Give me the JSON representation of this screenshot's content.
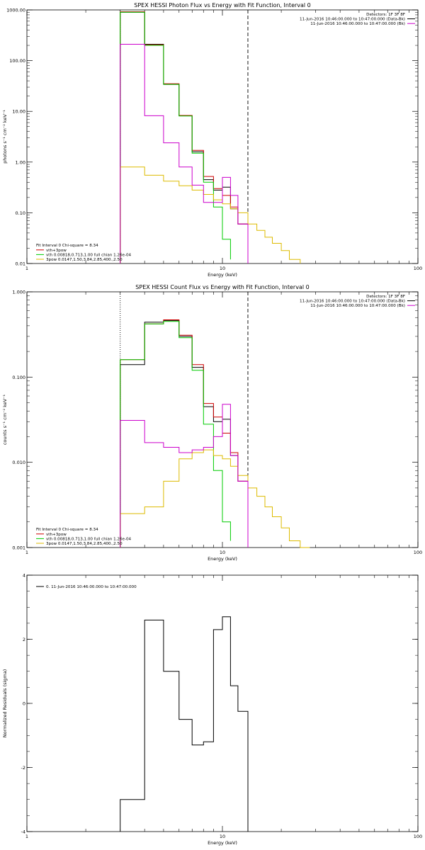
{
  "chart_data": [
    {
      "type": "line",
      "title": "SPEX HESSI Photon Flux vs Energy with Fit Function, Interval 0",
      "xlabel": "Energy (keV)",
      "ylabel": "photons s⁻¹ cm⁻² keV⁻¹",
      "xlim": [
        1,
        100
      ],
      "ylim": [
        0.01,
        1000
      ],
      "log_x": true,
      "log_y": true,
      "x_ticks": [
        {
          "v": 1,
          "t": "1"
        },
        {
          "v": 10,
          "t": "10"
        },
        {
          "v": 100,
          "t": "100"
        }
      ],
      "y_ticks": [
        {
          "v": 0.01,
          "t": "0.01"
        },
        {
          "v": 0.1,
          "t": "0.10"
        },
        {
          "v": 1,
          "t": "1.00"
        },
        {
          "v": 10,
          "t": "10.00"
        },
        {
          "v": 100,
          "t": "100.00"
        },
        {
          "v": 1000,
          "t": "1000.00"
        }
      ],
      "vlines": [
        {
          "x": 3.0,
          "style": "dotted",
          "color": "#000000"
        },
        {
          "x": 13.5,
          "style": "dashed",
          "color": "#000000"
        }
      ],
      "legend_right": [
        {
          "text": "Detectors: 1F 3F 8F",
          "line": false,
          "color": "#000000"
        },
        {
          "text": "11-Jun-2016 10:46:00.000 to 10:47:00.000 (Data-Bk)",
          "line": true,
          "color": "#000000"
        },
        {
          "text": "11-Jun-2016 10:46:00.000 to 10:47:00.000 (Bk)",
          "line": true,
          "color": "#cc00cc"
        }
      ],
      "legend_left": [
        {
          "text": "Fit Interval 0   Chi-square = 8.34",
          "line": false,
          "color": "#000000"
        },
        {
          "text": "vth+3pow",
          "line": true,
          "color": "#cc0000"
        },
        {
          "text": "vth 0.00818,0.713,1.00  full chian 1.26e-04",
          "line": true,
          "color": "#00cc00"
        },
        {
          "text": "3pow 0.0147,1.50,3.84,2.85,400.,2.50",
          "line": true,
          "color": "#ddbb00"
        }
      ],
      "series": [
        {
          "color": "#000000",
          "edges": [
            3.0,
            4.0,
            5.0,
            6.0,
            7.0,
            8.0,
            9.0,
            10.0,
            11.0,
            12.0,
            13.5
          ],
          "values": [
            900,
            210,
            34,
            8.2,
            1.6,
            0.45,
            0.28,
            0.32,
            0.12,
            0.06
          ]
        },
        {
          "color": "#cc0000",
          "edges": [
            3.0,
            4.0,
            5.0,
            6.0,
            7.0,
            8.0,
            9.0,
            10.0,
            11.0,
            12.0,
            13.5
          ],
          "values": [
            920,
            205,
            35,
            8.3,
            1.7,
            0.52,
            0.3,
            0.22,
            0.13,
            0.06
          ]
        },
        {
          "color": "#00cc00",
          "edges": [
            3.0,
            4.0,
            5.0,
            6.0,
            7.0,
            8.0,
            9.0,
            10.0,
            11.0
          ],
          "values": [
            900,
            200,
            34,
            8.1,
            1.5,
            0.4,
            0.13,
            0.03,
            0.012
          ]
        },
        {
          "color": "#ddbb00",
          "edges": [
            3.0,
            4.0,
            5.0,
            6.0,
            7.0,
            8.0,
            9.0,
            10.0,
            11.0,
            12.0,
            13.5,
            15.0,
            16.5,
            18.0,
            20.0,
            22.0,
            25.0
          ],
          "values": [
            0.8,
            0.55,
            0.42,
            0.34,
            0.28,
            0.23,
            0.18,
            0.15,
            0.12,
            0.1,
            0.06,
            0.045,
            0.033,
            0.025,
            0.018,
            0.012
          ]
        },
        {
          "color": "#cc00cc",
          "edges": [
            3.0,
            4.0,
            5.0,
            6.0,
            7.0,
            8.0,
            9.0,
            10.0,
            11.0,
            12.0,
            13.5
          ],
          "values": [
            210,
            8.2,
            2.4,
            0.8,
            0.35,
            0.16,
            0.16,
            0.5,
            0.22,
            0.06
          ]
        }
      ]
    },
    {
      "type": "line",
      "title": "SPEX HESSI Count Flux vs Energy with Fit Function, Interval 0",
      "xlabel": "Energy (keV)",
      "ylabel": "counts s⁻¹ cm⁻² keV⁻¹",
      "xlim": [
        1,
        100
      ],
      "ylim": [
        0.001,
        1.0
      ],
      "log_x": true,
      "log_y": true,
      "x_ticks": [
        {
          "v": 1,
          "t": "1"
        },
        {
          "v": 10,
          "t": "10"
        },
        {
          "v": 100,
          "t": "100"
        }
      ],
      "y_ticks": [
        {
          "v": 0.001,
          "t": "0.001"
        },
        {
          "v": 0.01,
          "t": "0.010"
        },
        {
          "v": 0.1,
          "t": "0.100"
        },
        {
          "v": 1,
          "t": "1.000"
        }
      ],
      "vlines": [
        {
          "x": 3.0,
          "style": "dotted",
          "color": "#000000"
        },
        {
          "x": 13.5,
          "style": "dashed",
          "color": "#000000"
        }
      ],
      "legend_right": [
        {
          "text": "Detectors: 1F 3F 8F",
          "line": false,
          "color": "#000000"
        },
        {
          "text": "11-Jun-2016 10:46:00.000 to 10:47:00.000 (Data-Bk)",
          "line": true,
          "color": "#000000"
        },
        {
          "text": "11-Jun-2016 10:46:00.000 to 10:47:00.000 (Bk)",
          "line": true,
          "color": "#cc00cc"
        }
      ],
      "legend_left": [
        {
          "text": "Fit Interval 0   Chi-square = 8.34",
          "line": false,
          "color": "#000000"
        },
        {
          "text": "vth+3pow",
          "line": true,
          "color": "#cc0000"
        },
        {
          "text": "vth 0.00818,0.713,1.00  full chian 1.26e-04",
          "line": true,
          "color": "#00cc00"
        },
        {
          "text": "3pow 0.0147,1.50,3.84,2.85,400.,2.50",
          "line": true,
          "color": "#ddbb00"
        }
      ],
      "series": [
        {
          "color": "#000000",
          "edges": [
            3.0,
            4.0,
            5.0,
            6.0,
            7.0,
            8.0,
            9.0,
            10.0,
            11.0,
            12.0,
            13.5
          ],
          "values": [
            0.14,
            0.44,
            0.46,
            0.3,
            0.13,
            0.045,
            0.03,
            0.032,
            0.012,
            0.006
          ]
        },
        {
          "color": "#cc0000",
          "edges": [
            3.0,
            4.0,
            5.0,
            6.0,
            7.0,
            8.0,
            9.0,
            10.0,
            11.0,
            12.0,
            13.5
          ],
          "values": [
            0.16,
            0.42,
            0.47,
            0.31,
            0.14,
            0.049,
            0.034,
            0.022,
            0.013,
            0.006
          ]
        },
        {
          "color": "#00cc00",
          "edges": [
            3.0,
            4.0,
            5.0,
            6.0,
            7.0,
            8.0,
            9.0,
            10.0,
            11.0
          ],
          "values": [
            0.16,
            0.42,
            0.45,
            0.29,
            0.12,
            0.028,
            0.008,
            0.002,
            0.0012
          ]
        },
        {
          "color": "#ddbb00",
          "edges": [
            3.0,
            4.0,
            5.0,
            6.0,
            7.0,
            8.0,
            9.0,
            10.0,
            11.0,
            12.0,
            13.5,
            15.0,
            16.5,
            18.0,
            20.0,
            22.0,
            25.0,
            28.0
          ],
          "values": [
            0.0025,
            0.003,
            0.006,
            0.011,
            0.013,
            0.014,
            0.012,
            0.011,
            0.009,
            0.007,
            0.005,
            0.004,
            0.003,
            0.0023,
            0.0017,
            0.0012,
            0.001
          ]
        },
        {
          "color": "#cc00cc",
          "edges": [
            3.0,
            4.0,
            5.0,
            6.0,
            7.0,
            8.0,
            9.0,
            10.0,
            11.0,
            12.0,
            13.5
          ],
          "values": [
            0.031,
            0.017,
            0.015,
            0.013,
            0.014,
            0.015,
            0.02,
            0.048,
            0.012,
            0.006
          ]
        }
      ]
    },
    {
      "type": "line",
      "title": "",
      "xlabel": "Energy (keV)",
      "ylabel": "Normalized Residuals (sigma)",
      "xlim": [
        1,
        100
      ],
      "ylim": [
        -4,
        4
      ],
      "log_x": true,
      "log_y": false,
      "x_ticks": [
        {
          "v": 1,
          "t": "1"
        },
        {
          "v": 10,
          "t": "10"
        },
        {
          "v": 100,
          "t": "100"
        }
      ],
      "y_ticks": [
        {
          "v": -4,
          "t": "-4"
        },
        {
          "v": -2,
          "t": "-2"
        },
        {
          "v": 0,
          "t": "0"
        },
        {
          "v": 2,
          "t": "2"
        },
        {
          "v": 4,
          "t": "4"
        }
      ],
      "vlines": [],
      "legend_right": [],
      "legend_left": [
        {
          "text": "0. 11-Jun-2016 10:46:00.000 to 10:47:00.000",
          "line": true,
          "color": "#000000"
        }
      ],
      "series": [
        {
          "color": "#000000",
          "edges": [
            3.0,
            4.0,
            5.0,
            6.0,
            7.0,
            8.0,
            9.0,
            10.0,
            11.0,
            12.0,
            13.5
          ],
          "values": [
            -3.0,
            2.6,
            1.0,
            -0.5,
            -1.3,
            -1.2,
            2.3,
            2.7,
            0.55,
            -0.25
          ]
        }
      ]
    }
  ]
}
